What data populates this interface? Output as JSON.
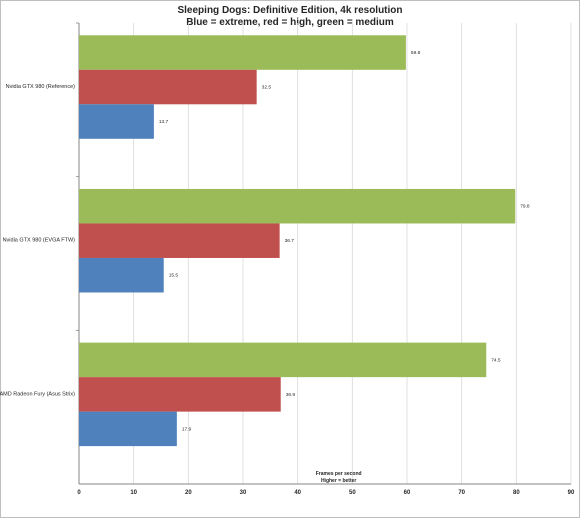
{
  "chart_data": {
    "type": "bar",
    "orientation": "horizontal",
    "title": "Sleeping Dogs: Definitive Edition, 4k resolution",
    "subtitle": "Blue = extreme, red = high, green = medium",
    "categories": [
      "Nvidia GTX 980 (Reference)",
      "Nvidia GTX 980 (EVGA FTW)",
      "AMD Radeon Fury (Asus Strix)"
    ],
    "series": [
      {
        "name": "medium",
        "color": "#9bbb59",
        "values": [
          59.8,
          79.8,
          74.5
        ]
      },
      {
        "name": "high",
        "color": "#c0504d",
        "values": [
          32.5,
          36.7,
          36.9
        ]
      },
      {
        "name": "extreme",
        "color": "#4f81bd",
        "values": [
          13.7,
          15.5,
          17.9
        ]
      }
    ],
    "value_labels": [
      [
        "59.8",
        "79.8",
        "74.5"
      ],
      [
        "32.5",
        "36.7",
        "36.9"
      ],
      [
        "13.7",
        "15.5",
        "17.9"
      ]
    ],
    "xlim": [
      0,
      90
    ],
    "xticks": [
      "0",
      "10",
      "20",
      "30",
      "40",
      "50",
      "60",
      "70",
      "80",
      "90"
    ],
    "xlabel": "Frames per second",
    "xlabel2": "Higher = better",
    "grid": true,
    "legend": "none"
  }
}
